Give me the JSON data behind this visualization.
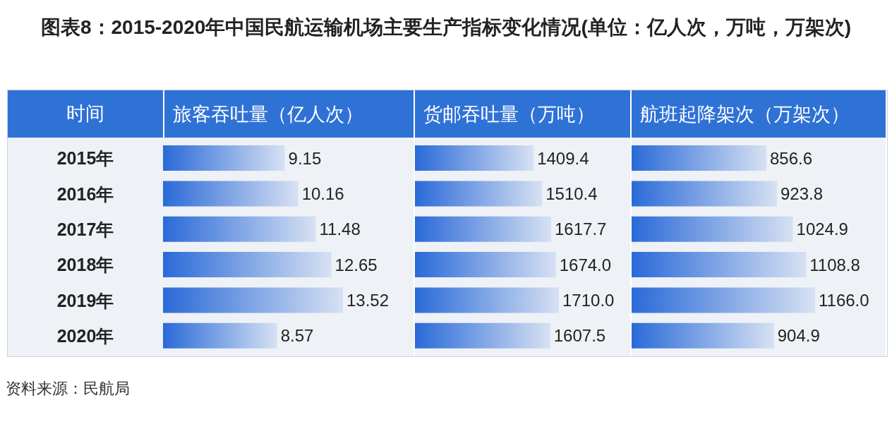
{
  "chart_data": [
    {
      "type": "bar",
      "orientation": "horizontal",
      "title": "图表8：2015-2020年中国民航运输机场主要生产指标变化情况(单位：亿人次，万吨，万架次)",
      "ylabel": "时间",
      "xlabel": "旅客吞吐量（亿人次）",
      "categories": [
        "2015年",
        "2016年",
        "2017年",
        "2018年",
        "2019年",
        "2020年"
      ],
      "values": [
        9.15,
        10.16,
        11.48,
        12.65,
        13.52,
        8.57
      ],
      "value_labels": [
        "9.15",
        "10.16",
        "11.48",
        "12.65",
        "13.52",
        "8.57"
      ],
      "color": "#2a6ad8",
      "annotations": [
        "资料来源：民航局"
      ]
    },
    {
      "type": "bar",
      "orientation": "horizontal",
      "xlabel": "货邮吞吐量（万吨）",
      "values": [
        1409.4,
        1510.4,
        1617.7,
        1674.0,
        1710.0,
        1607.5
      ],
      "value_labels": [
        "1409.4",
        "1510.4",
        "1617.7",
        "1674.0",
        "1710.0",
        "1607.5"
      ],
      "color": "#2a6ad8",
      "tick_labels": false
    },
    {
      "type": "bar",
      "orientation": "horizontal",
      "xlabel": "航班起降架次（万架次）",
      "values": [
        856.6,
        923.8,
        1024.9,
        1108.8,
        1166.0,
        904.9
      ],
      "value_labels": [
        "856.6",
        "923.8",
        "1024.9",
        "1108.8",
        "1166.0",
        "904.9"
      ],
      "color": "#2a6ad8",
      "tick_labels": false
    }
  ]
}
